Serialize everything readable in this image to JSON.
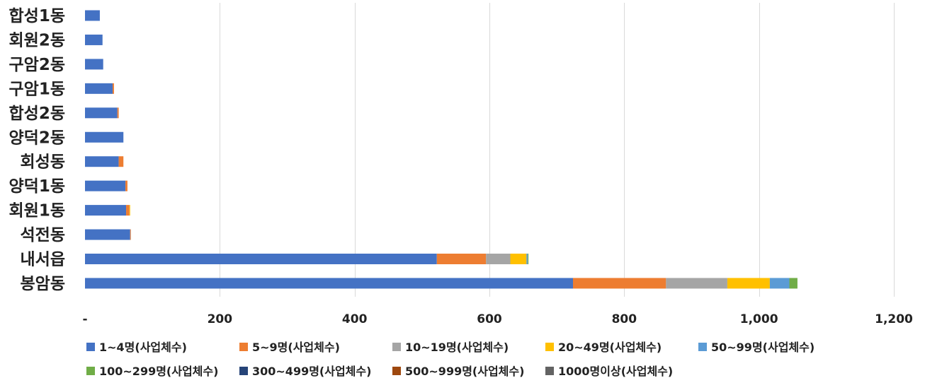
{
  "chart_data": {
    "type": "bar",
    "orientation": "horizontal",
    "stacked": true,
    "categories": [
      "합성1동",
      "회원2동",
      "구암2동",
      "구암1동",
      "합성2동",
      "양덕2동",
      "회성동",
      "양덕1동",
      "회원1동",
      "석전동",
      "내서읍",
      "봉암동"
    ],
    "series": [
      {
        "name": "1~4명(사업체수)",
        "color": "#4472C4",
        "values": [
          22,
          26,
          27,
          41,
          48,
          57,
          50,
          60,
          61,
          67,
          522,
          724
        ]
      },
      {
        "name": "5~9명(사업체수)",
        "color": "#ED7D31",
        "values": [
          0,
          0,
          0,
          2,
          2,
          0,
          7,
          3,
          5,
          1,
          73,
          138
        ]
      },
      {
        "name": "10~19명(사업체수)",
        "color": "#A5A5A5",
        "values": [
          0,
          0,
          0,
          0,
          0,
          0,
          0,
          0,
          0,
          0,
          36,
          91
        ]
      },
      {
        "name": "20~49명(사업체수)",
        "color": "#FFC000",
        "values": [
          0,
          0,
          0,
          0,
          0,
          0,
          0,
          0,
          1,
          0,
          24,
          63
        ]
      },
      {
        "name": "50~99명(사업체수)",
        "color": "#5B9BD5",
        "values": [
          0,
          0,
          0,
          0,
          0,
          0,
          0,
          0,
          0,
          0,
          2,
          29
        ]
      },
      {
        "name": "100~299명(사업체수)",
        "color": "#70AD47",
        "values": [
          0,
          0,
          0,
          0,
          0,
          0,
          0,
          0,
          0,
          0,
          1,
          12
        ]
      },
      {
        "name": "300~499명(사업체수)",
        "color": "#264478",
        "values": [
          0,
          0,
          0,
          0,
          0,
          0,
          0,
          0,
          0,
          0,
          0,
          0
        ]
      },
      {
        "name": "500~999명(사업체수)",
        "color": "#9E480E",
        "values": [
          0,
          0,
          0,
          0,
          0,
          0,
          0,
          0,
          0,
          0,
          0,
          0
        ]
      },
      {
        "name": "1000명이상(사업체수)",
        "color": "#636363",
        "values": [
          0,
          0,
          0,
          0,
          0,
          0,
          0,
          0,
          0,
          0,
          0,
          0
        ]
      }
    ],
    "xlim": [
      0,
      1200
    ],
    "x_ticks": [
      0,
      200,
      400,
      600,
      800,
      1000,
      1200
    ],
    "x_tick_labels": [
      "-",
      "200",
      "400",
      "600",
      "800",
      "1,000",
      "1,200"
    ],
    "grid": "vertical",
    "legend_position": "bottom"
  }
}
